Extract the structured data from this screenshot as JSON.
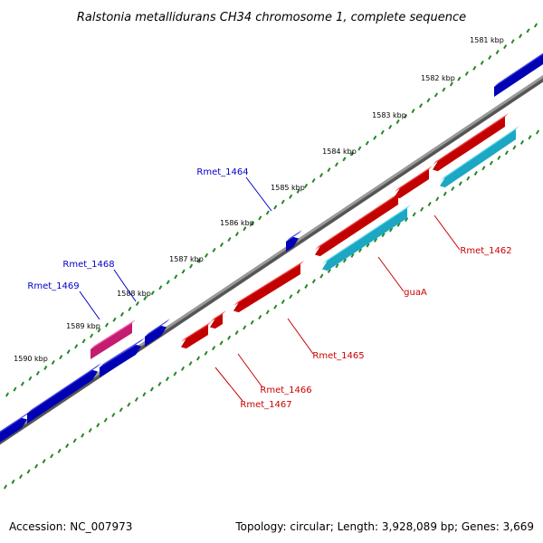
{
  "title": "Ralstonia metallidurans CH34 chromosome 1, complete sequence",
  "footer": {
    "accession": "Accession: NC_007973",
    "summary": "Topology: circular; Length: 3,928,089 bp; Genes: 3,669"
  },
  "colors": {
    "backbone": "#888888",
    "tick": "#228822",
    "forward_gene": "#0000dd",
    "reverse_gene": "#ee0000",
    "cds_reverse": "#22ccee",
    "rna_forward": "#ee2288",
    "forward_label": "#0000cc",
    "reverse_label": "#cc0000"
  },
  "ticks": [
    {
      "label": "1581 kbp"
    },
    {
      "label": "1582 kbp"
    },
    {
      "label": "1583 kbp"
    },
    {
      "label": "1584 kbp"
    },
    {
      "label": "1585 kbp"
    },
    {
      "label": "1586 kbp"
    },
    {
      "label": "1587 kbp"
    },
    {
      "label": "1588 kbp"
    },
    {
      "label": "1589 kbp"
    },
    {
      "label": "1590 kbp"
    }
  ],
  "gene_labels": [
    {
      "text": "Rmet_1464",
      "strand": "forward"
    },
    {
      "text": "Rmet_1468",
      "strand": "forward"
    },
    {
      "text": "Rmet_1469",
      "strand": "forward"
    },
    {
      "text": "Rmet_1462",
      "strand": "reverse"
    },
    {
      "text": "guaA",
      "strand": "reverse"
    },
    {
      "text": "Rmet_1465",
      "strand": "reverse"
    },
    {
      "text": "Rmet_1466",
      "strand": "reverse"
    },
    {
      "text": "Rmet_1467",
      "strand": "reverse"
    }
  ]
}
